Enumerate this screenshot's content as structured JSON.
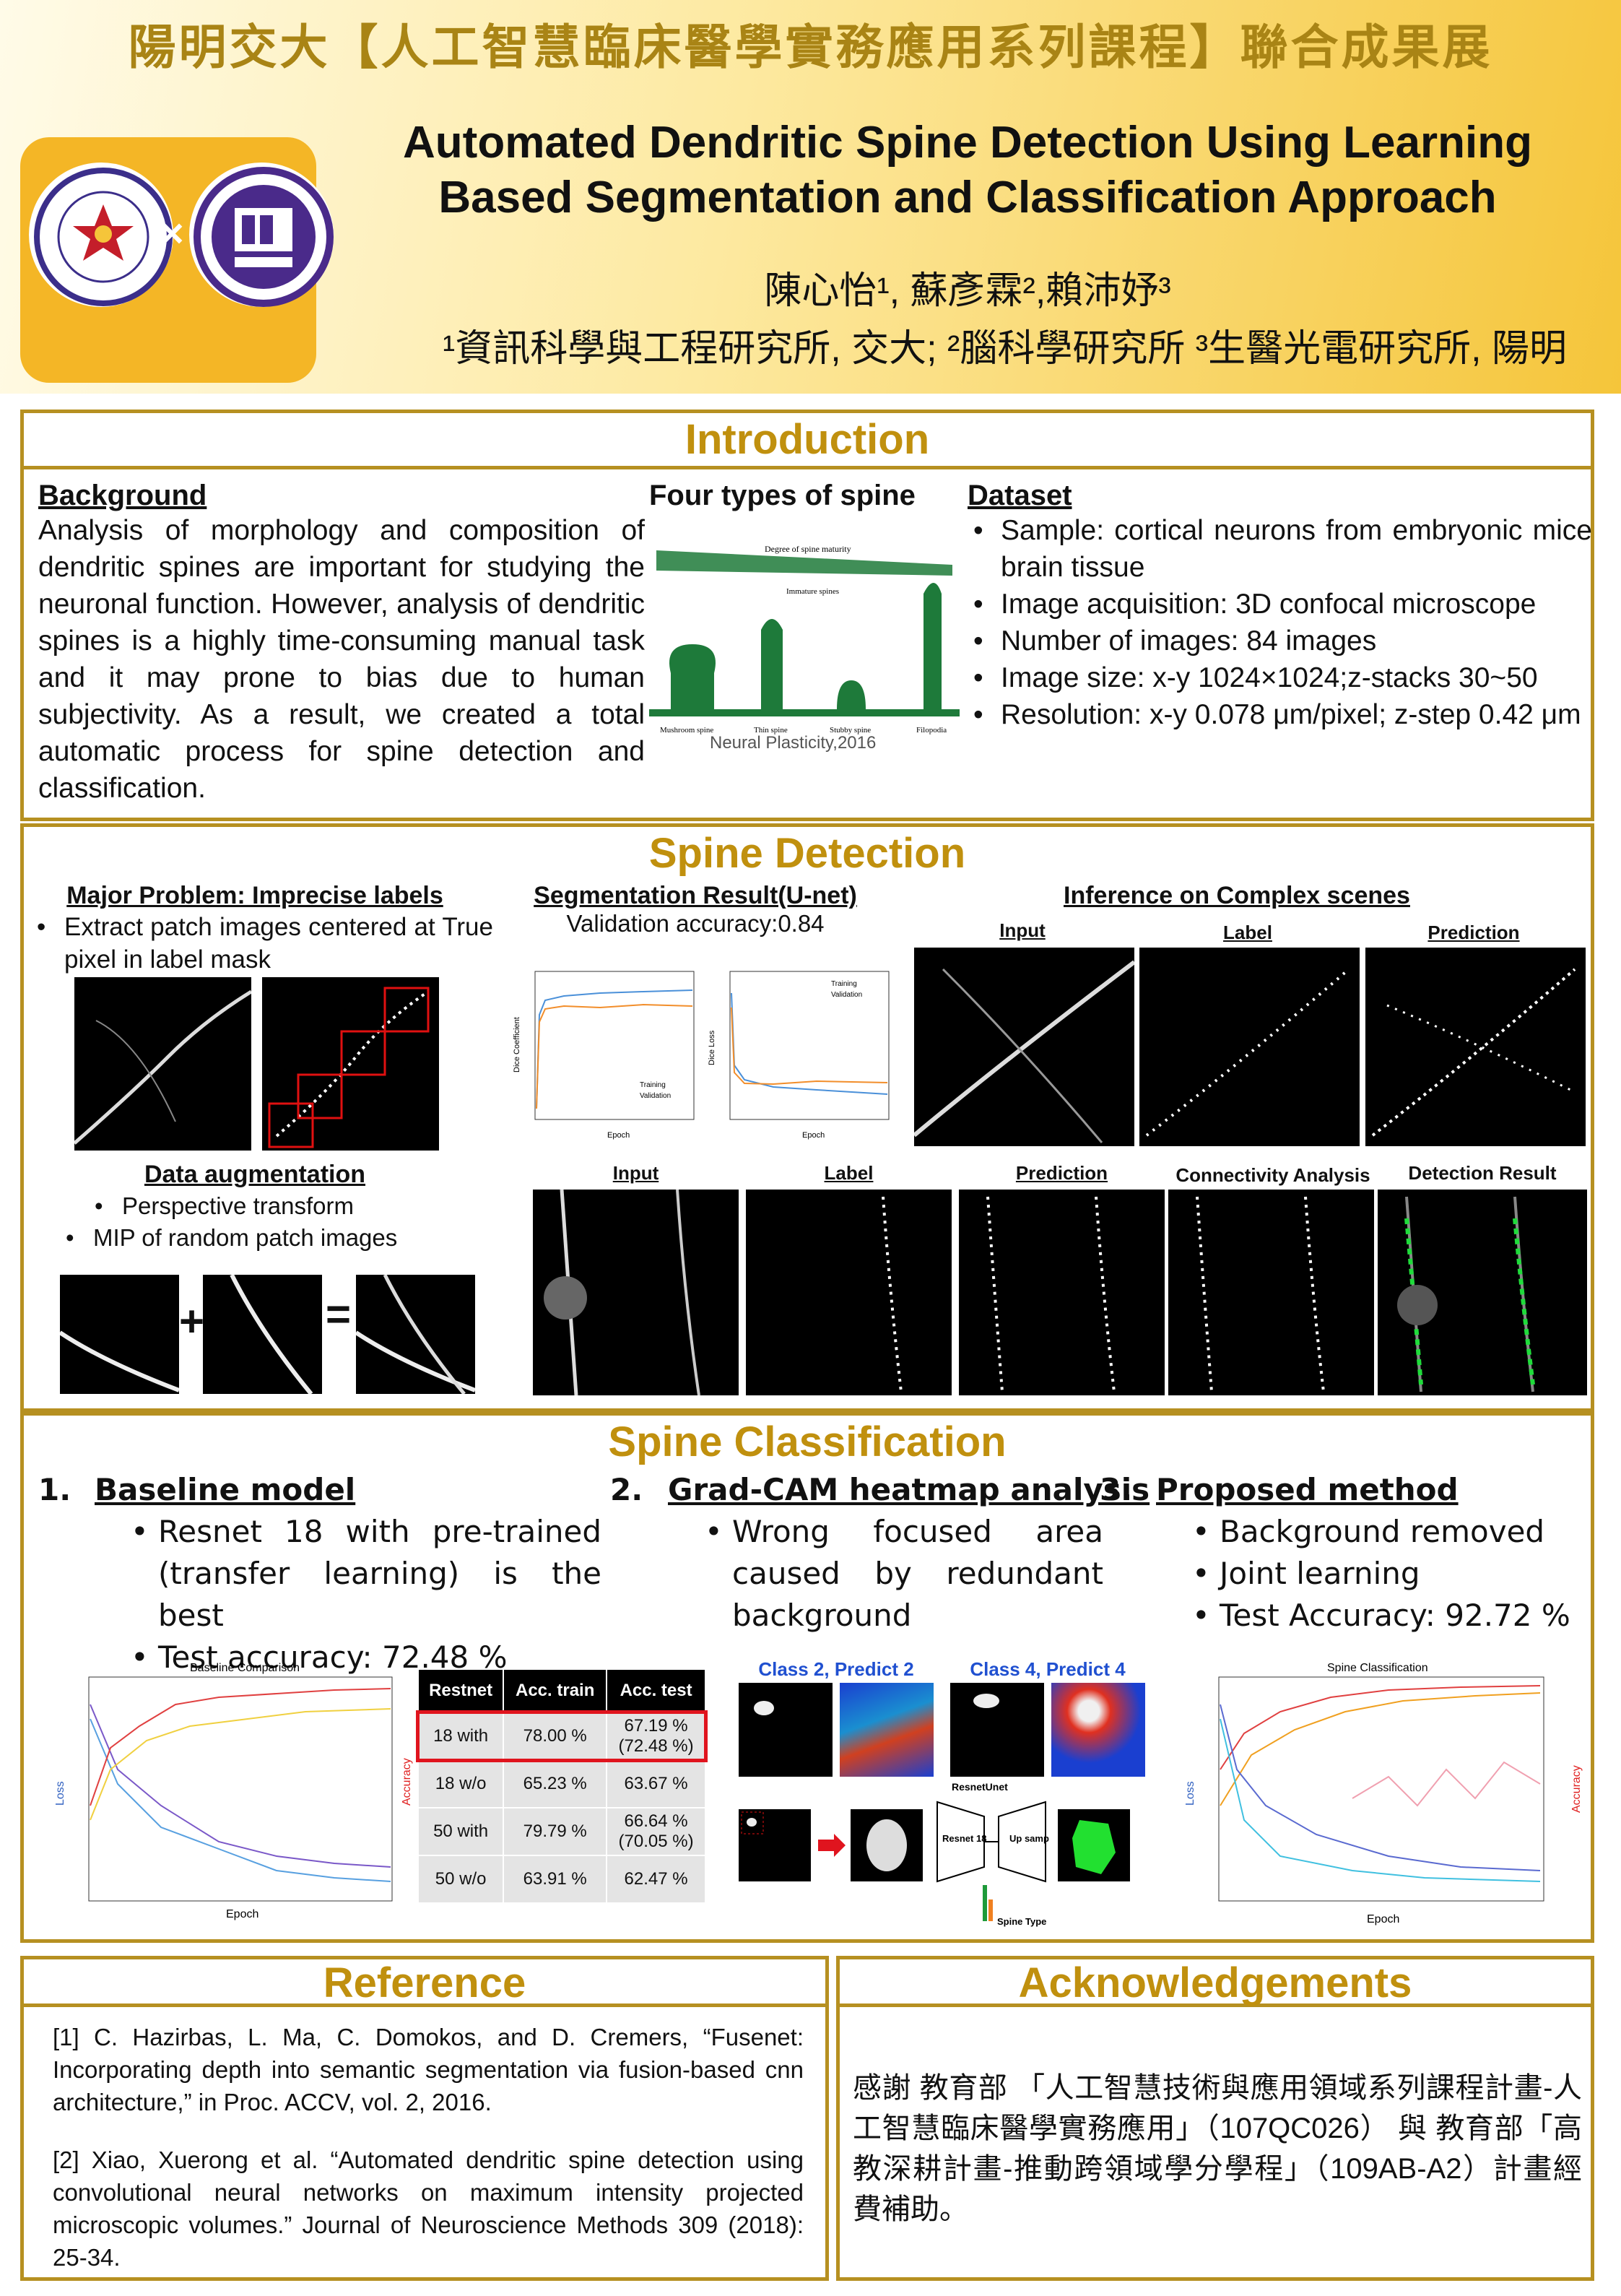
{
  "header": {
    "top_title": "陽明交大【人工智慧臨床醫學實務應用系列課程】聯合成果展",
    "paper_title": "Automated Dendritic Spine Detection Using Learning Based Segmentation and Classification Approach",
    "authors": "陳心怡¹, 蘇彥霖²,賴沛妤³",
    "affiliations": "¹資訊科學與工程研究所, 交大; ²腦科學研究所 ³生醫光電研究所, 陽明",
    "logo_sep": "×"
  },
  "introduction": {
    "heading": "Introduction",
    "background_h": "Background",
    "background": "Analysis of morphology and composition of dendritic spines are important for studying the neuronal function. However, analysis of dendritic spines is a highly time-consuming manual task and it may prone to bias due to human subjectivity. As a result, we created a total automatic process for spine detection and classification.",
    "four_types_h": "Four types of spine",
    "figure_caption": "Neural Plasticity,2016",
    "fig_degree": "Degree of spine maturity",
    "fig_immature": "Immature spines",
    "spine_types": [
      "Mushroom spine",
      "Thin spine",
      "Stubby spine",
      "Filopodia"
    ],
    "dataset_h": "Dataset",
    "dataset": [
      "Sample: cortical neurons from embryonic mice brain tissue",
      "Image acquisition: 3D confocal microscope",
      "Number of images: 84 images",
      "Image size: x-y 1024×1024;z-stacks 30~50",
      "Resolution: x-y 0.078 μm/pixel; z-step 0.42 μm"
    ]
  },
  "detection": {
    "heading": "Spine Detection",
    "major_h": "Major Problem: Imprecise labels",
    "major_items": [
      "Extract patch images centered at True pixel in label mask"
    ],
    "aug_h": "Data augmentation",
    "aug_items": [
      "Perspective transform",
      "MIP of random patch images"
    ],
    "plus": "+",
    "eq": "=",
    "seg_h": "Segmentation Result(U-net)",
    "seg_acc": "Validation accuracy:0.84",
    "infer_h": "Inference on Complex scenes",
    "labels_top": [
      "Input",
      "Label",
      "Prediction"
    ],
    "labels_bottom": [
      "Input",
      "Label",
      "Prediction",
      "Connectivity Analysis",
      "Detection Result"
    ],
    "dice_coef_label": "Dice Coefficient",
    "dice_loss_label": "Dice Loss",
    "epoch": "Epoch",
    "legend": [
      "Training",
      "Validation"
    ]
  },
  "classification": {
    "heading": "Spine Classification",
    "c1_num": "1.",
    "c1_h": "Baseline model",
    "c1_items": [
      "Resnet 18 with pre-trained (transfer learning) is the best",
      "Test accuracy: 72.48 %"
    ],
    "c2_num": "2.",
    "c2_h": "Grad-CAM heatmap analysis",
    "c2_items": [
      "Wrong focused area caused by redundant background"
    ],
    "c3_num": "3.",
    "c3_h": "Proposed method",
    "c3_items": [
      "Background removed",
      "Joint learning",
      "Test Accuracy: 92.72 %"
    ],
    "table_headers": [
      "Restnet",
      "Acc. train",
      "Acc. test"
    ],
    "table_rows": [
      [
        "18 with",
        "78.00 %",
        "67.19 %",
        "(72.48 %)"
      ],
      [
        "18 w/o",
        "65.23 %",
        "63.67 %",
        ""
      ],
      [
        "50 with",
        "79.79 %",
        "66.64 %",
        "(70.05 %)"
      ],
      [
        "50 w/o",
        "63.91 %",
        "62.47 %",
        ""
      ]
    ],
    "gradcam_a": "Class 2, Predict 2",
    "gradcam_b": "Class 4, Predict 4",
    "resnetunet": "ResnetUnet",
    "resnet18": "Resnet 18",
    "upsample": "Up sample",
    "spine_type": "Spine Type",
    "baseline_chart_title": "Baseline Comparison",
    "spine_chart_title": "Spine Classification",
    "loss_label": "Loss",
    "acc_label": "Accuracy",
    "epoch": "Epoch"
  },
  "reference": {
    "heading": "Reference",
    "r1": "[1] C. Hazirbas, L. Ma, C. Domokos, and D. Cremers, “Fusenet: Incorporating depth into semantic segmentation via fusion-based cnn architecture,” in Proc. ACCV, vol. 2, 2016.",
    "r2": "[2] Xiao, Xuerong et al. “Automated dendritic spine detection using convolutional neural networks on maximum intensity projected microscopic volumes.” Journal of Neuroscience Methods 309 (2018): 25-34."
  },
  "ack": {
    "heading": "Acknowledgements",
    "text": "感謝 教育部 「人工智慧技術與應用領域系列課程計畫-人工智慧臨床醫學實務應用」（107QC026） 與 教育部「高教深耕計畫-推動跨領域學分學程」（109AB-A2）計畫經費補助。"
  },
  "colors": {
    "gold": "#b69021",
    "heading": "#c0900e",
    "highlight": "#e0141e"
  }
}
